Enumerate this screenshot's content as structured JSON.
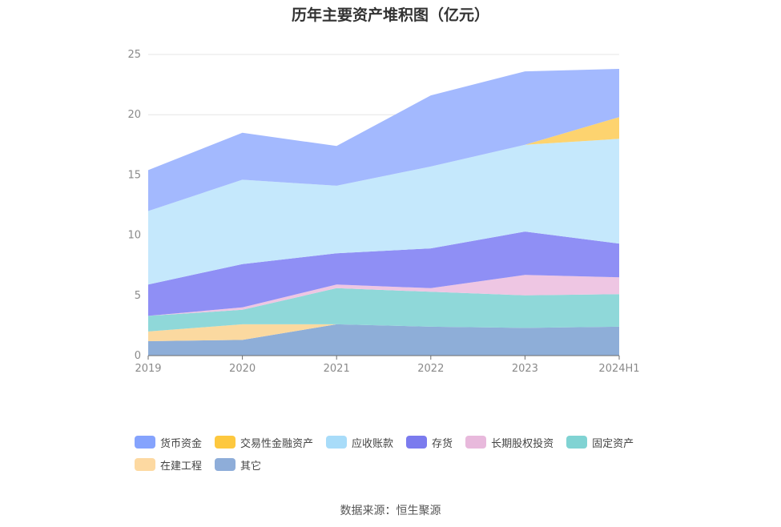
{
  "chart_data": {
    "type": "area",
    "stacked": true,
    "title": "历年主要资产堆积图（亿元）",
    "categories": [
      "2019",
      "2020",
      "2021",
      "2022",
      "2023",
      "2024H1"
    ],
    "ylim": [
      0,
      25
    ],
    "yticks": [
      "0",
      "5",
      "10",
      "15",
      "20",
      "25"
    ],
    "series": [
      {
        "name": "其它",
        "color": "#8eaed8",
        "values": [
          1.2,
          1.3,
          2.6,
          2.4,
          2.3,
          2.4
        ]
      },
      {
        "name": "在建工程",
        "color": "#fbd9a0",
        "values": [
          0.8,
          1.3,
          0.0,
          0.0,
          0.0,
          0.0
        ]
      },
      {
        "name": "固定资产",
        "color": "#8fd8d9",
        "values": [
          1.3,
          1.2,
          3.0,
          2.9,
          2.7,
          2.7
        ]
      },
      {
        "name": "长期股权投资",
        "color": "#eec6e3",
        "values": [
          0.0,
          0.2,
          0.3,
          0.3,
          1.7,
          1.4
        ]
      },
      {
        "name": "存货",
        "color": "#8f8ff5",
        "values": [
          2.6,
          3.6,
          2.6,
          3.3,
          3.6,
          2.8
        ]
      },
      {
        "name": "应收账款",
        "color": "#c5e8fc",
        "values": [
          6.1,
          7.0,
          5.6,
          6.8,
          7.2,
          8.7
        ]
      },
      {
        "name": "交易性金融资产",
        "color": "#fdd36f",
        "values": [
          0.0,
          0.0,
          0.0,
          0.0,
          0.0,
          1.8
        ]
      },
      {
        "name": "货币资金",
        "color": "#a3b9fe",
        "values": [
          3.4,
          3.9,
          3.3,
          5.9,
          6.1,
          4.0
        ]
      }
    ]
  },
  "legend": [
    {
      "label": "货币资金",
      "color": "#85a3fd"
    },
    {
      "label": "交易性金融资产",
      "color": "#fdc83f"
    },
    {
      "label": "应收账款",
      "color": "#a8dcf9"
    },
    {
      "label": "存货",
      "color": "#7b7bee"
    },
    {
      "label": "长期股权投资",
      "color": "#e8b9dc"
    },
    {
      "label": "固定资产",
      "color": "#80d3d3"
    },
    {
      "label": "在建工程",
      "color": "#fdd9a1"
    },
    {
      "label": "其它",
      "color": "#8eadd9"
    }
  ],
  "source": "数据来源：恒生聚源"
}
